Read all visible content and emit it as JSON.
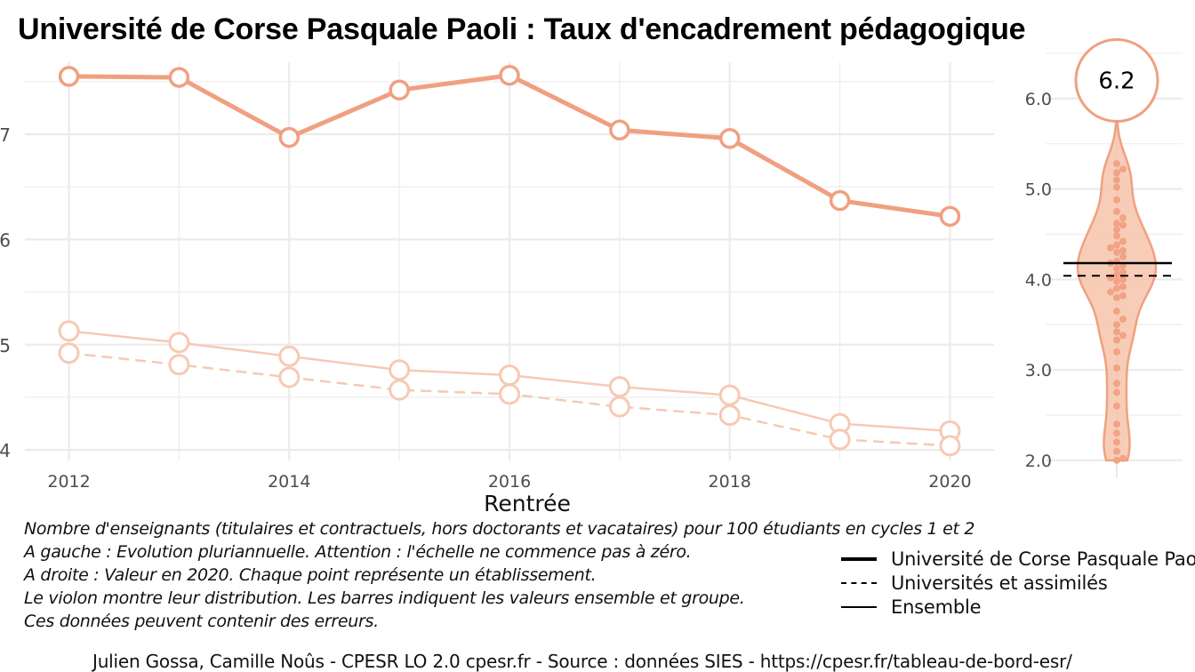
{
  "title": "Université de Corse Pasquale Paoli  :  Taux d'encadrement pédagogique",
  "colors": {
    "etab": "#f0a080",
    "etab_light": "#f6c9b4",
    "violin_fill": "#f7c4ab",
    "dots": "#f2a385",
    "grid": "#ebebeb",
    "axis_text": "#4d4d4d",
    "ref_line": "#000000"
  },
  "chart_data": [
    {
      "type": "line",
      "xlabel": "Rentrée",
      "ylabel": "",
      "x": [
        2012,
        2013,
        2014,
        2015,
        2016,
        2017,
        2018,
        2019,
        2020
      ],
      "ylim": [
        3.9,
        7.6
      ],
      "yticks": [
        4,
        5,
        6,
        7
      ],
      "ytick_labels": [
        "4",
        "5",
        "6",
        "7"
      ],
      "xticks": [
        2012,
        2014,
        2016,
        2018,
        2020
      ],
      "xtick_labels": [
        "2012",
        "2014",
        "2016",
        "2018",
        "2020"
      ],
      "grid": true,
      "series": [
        {
          "name": "Université de Corse Pasquale Paoli",
          "style": "solid-bold",
          "values": [
            7.55,
            7.54,
            6.97,
            7.42,
            7.56,
            7.04,
            6.96,
            6.37,
            6.22
          ]
        },
        {
          "name": "Universités et assimilés",
          "style": "dashed",
          "values": [
            4.92,
            4.81,
            4.69,
            4.57,
            4.53,
            4.41,
            4.33,
            4.1,
            4.04
          ]
        },
        {
          "name": "Ensemble",
          "style": "solid-thin",
          "values": [
            5.13,
            5.02,
            4.89,
            4.76,
            4.71,
            4.6,
            4.52,
            4.25,
            4.18
          ]
        }
      ]
    },
    {
      "type": "violin",
      "ylim": [
        1.9,
        6.5
      ],
      "yticks": [
        2.0,
        3.0,
        4.0,
        5.0,
        6.0
      ],
      "ytick_labels": [
        "2.0",
        "3.0",
        "4.0",
        "5.0",
        "6.0"
      ],
      "highlight_value": 6.2,
      "highlight_label": "6.2",
      "reference_lines": [
        {
          "name": "Ensemble",
          "value": 4.18,
          "style": "solid"
        },
        {
          "name": "Universités et assimilés",
          "value": 4.04,
          "style": "dashed"
        }
      ],
      "points": [
        2.0,
        2.02,
        2.1,
        2.2,
        2.3,
        2.4,
        2.6,
        2.75,
        2.85,
        3.02,
        3.2,
        3.33,
        3.38,
        3.42,
        3.5,
        3.56,
        3.65,
        3.8,
        3.82,
        3.86,
        3.9,
        3.92,
        3.98,
        4.0,
        4.02,
        4.05,
        4.08,
        4.12,
        4.15,
        4.18,
        4.2,
        4.25,
        4.3,
        4.32,
        4.35,
        4.38,
        4.42,
        4.48,
        4.55,
        4.6,
        4.62,
        4.68,
        4.75,
        4.88,
        5.02,
        5.1,
        5.18,
        5.22,
        5.28
      ]
    }
  ],
  "captions": [
    "Nombre d'enseignants (titulaires et contractuels, hors doctorants et vacataires) pour 100 étudiants en cycles 1 et 2",
    "A gauche : Evolution pluriannuelle. Attention : l'échelle ne commence pas à zéro.",
    "A droite : Valeur en 2020. Chaque point représente un établissement.",
    "Le violon montre leur distribution. Les barres indiquent les valeurs ensemble et groupe.",
    "Ces données peuvent contenir des erreurs."
  ],
  "legend": [
    {
      "label": "Université de Corse Pasquale Paoli",
      "style": "solid-bold"
    },
    {
      "label": "Universités et assimilés",
      "style": "dashed"
    },
    {
      "label": "Ensemble",
      "style": "solid-thin"
    }
  ],
  "credits": "Julien Gossa, Camille Noûs - CPESR LO 2.0 cpesr.fr - Source : données SIES - https://cpesr.fr/tableau-de-bord-esr/"
}
